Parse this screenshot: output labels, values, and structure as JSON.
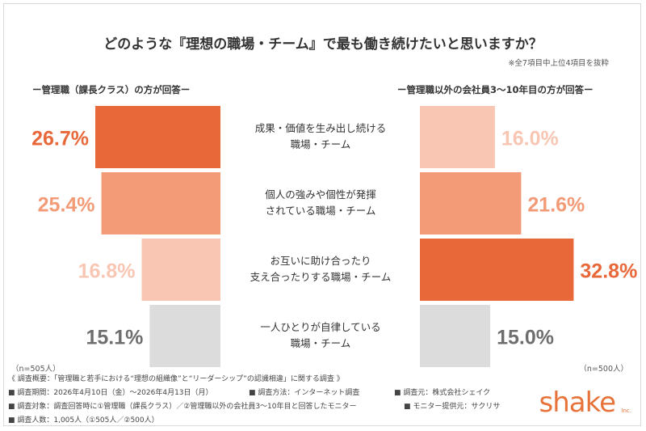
{
  "title": "どのような『理想の職場・チーム』で最も働き続けたいと思いますか？",
  "note": "※全7項目中上位4項目を抜粋",
  "left_panel_label": "ー管理職（課長クラス）の方が回答ー",
  "right_panel_label": "ー管理職以外の会社員3〜10年目の方が回答ー",
  "left_n": "（n=505人）",
  "right_n": "（n=500人）",
  "footer": {
    "line1": "《 調査概要：「管理職と若手における“理想の組織像”と“リーダーシップ”の認識相違」に関する調査 》",
    "period": "■ 調査期間：2026年4月10日（金）〜2026年4月13日（月）",
    "method": "■ 調査方法：インターネット調査",
    "source": "■ 調査元：株式会社シェイク",
    "target": "■ 調査対象：調査回答時に①管理職（課長クラス）／②管理職以外の会社員3〜10年目と回答したモニター",
    "provider": "■ モニター提供元：サクリサ",
    "count": "■ 調査人数：1,005人（①505人／②500人）"
  },
  "logo": {
    "text": "shake",
    "sub": "Inc.",
    "color": "#e8733a"
  },
  "chart_data": {
    "type": "bar",
    "orientation": "horizontal-butterfly",
    "categories": [
      [
        "成果・価値を生み出し続ける",
        "職場・チーム"
      ],
      [
        "個人の強みや個性が発揮",
        "されている職場・チーム"
      ],
      [
        "お互いに助け合ったり",
        "支え合ったりする職場・チーム"
      ],
      [
        "一人ひとりが自律している",
        "職場・チーム"
      ]
    ],
    "series": [
      {
        "name": "ー管理職（課長クラス）の方が回答ー",
        "values": [
          26.7,
          25.4,
          16.8,
          15.1
        ],
        "labels": [
          "26.7%",
          "25.4%",
          "16.8%",
          "15.1%"
        ],
        "colors": [
          "#e8683a",
          "#f39a76",
          "#f8c6b3",
          "#dcdcdc"
        ],
        "label_colors": [
          "#e8683a",
          "#f39a76",
          "#f8c6b3",
          "#6e6e6e"
        ]
      },
      {
        "name": "ー管理職以外の会社員3〜10年目の方が回答ー",
        "values": [
          16.0,
          21.6,
          32.8,
          15.0
        ],
        "labels": [
          "16.0%",
          "21.6%",
          "32.8%",
          "15.0%"
        ],
        "colors": [
          "#f8c6b3",
          "#f39a76",
          "#e8683a",
          "#dcdcdc"
        ],
        "label_colors": [
          "#f8c6b3",
          "#f39a76",
          "#e8683a",
          "#6e6e6e"
        ]
      }
    ]
  }
}
